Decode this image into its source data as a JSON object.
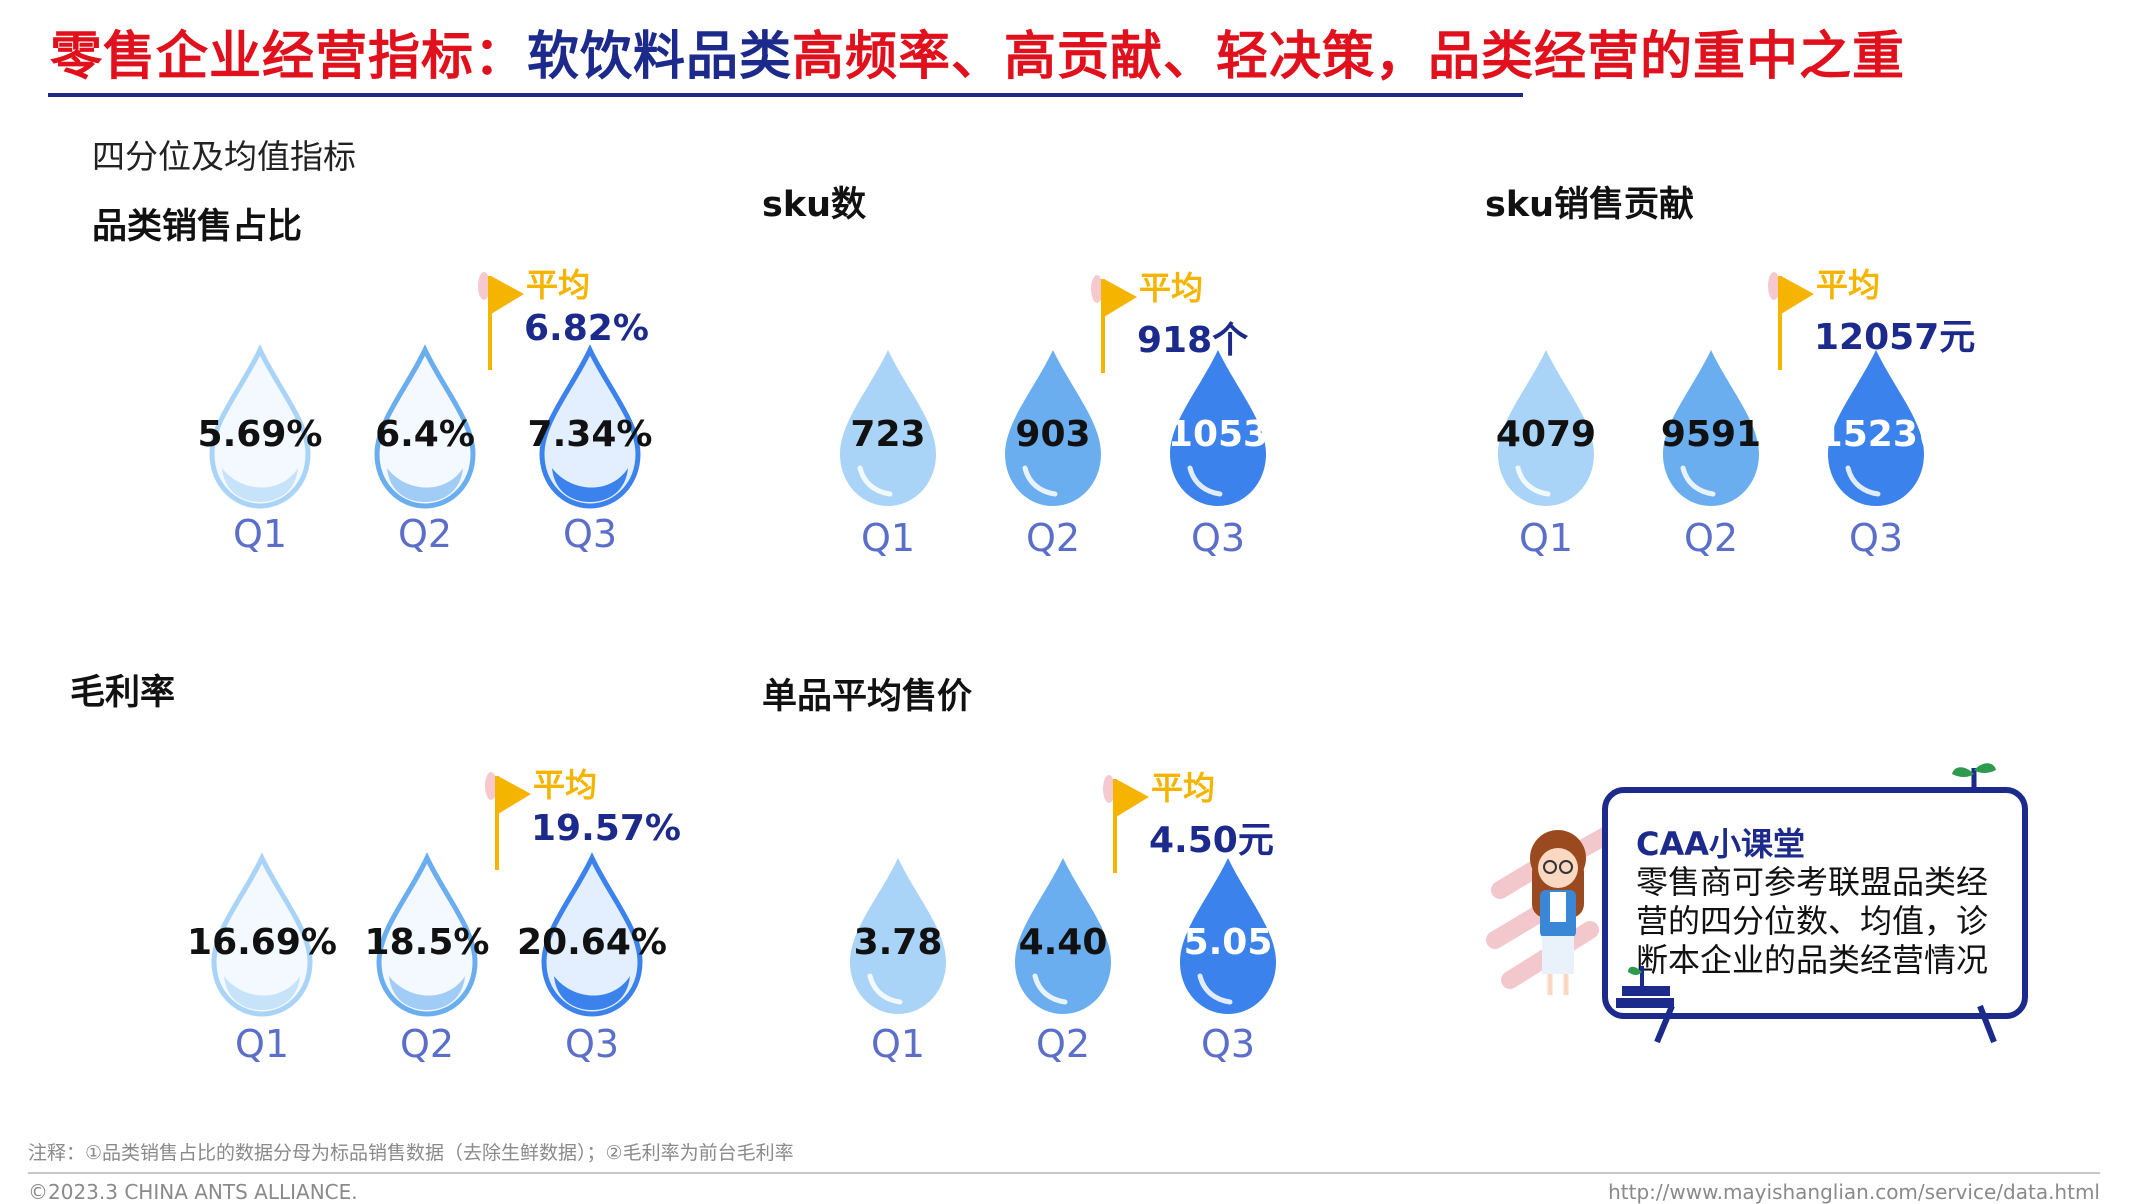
{
  "header": {
    "title_red_1": "零售企业经营指标：",
    "title_blue": "软饮料品类",
    "title_red_2": "高频率、高贡献、轻决策，品类经营的重中之重"
  },
  "subheading": "四分位及均值指标",
  "avg_label": "平均",
  "colors": {
    "title_red": "#e0101c",
    "title_blue": "#1c2a8c",
    "flag_yellow": "#f5b400",
    "quartile_label": "#5b6fc9",
    "drop_light": "#a9d4f7",
    "drop_mid": "#6aaef0",
    "drop_dark": "#3b82ec"
  },
  "chart_data": [
    {
      "type": "table",
      "title": "品类销售占比",
      "categories": [
        "Q1",
        "Q2",
        "Q3"
      ],
      "values": [
        "5.69%",
        "6.4%",
        "7.34%"
      ],
      "average": "6.82%",
      "style": "outline"
    },
    {
      "type": "table",
      "title": "sku数",
      "categories": [
        "Q1",
        "Q2",
        "Q3"
      ],
      "values": [
        "723",
        "903",
        "1053"
      ],
      "average": "918个",
      "style": "filled"
    },
    {
      "type": "table",
      "title": "sku销售贡献",
      "categories": [
        "Q1",
        "Q2",
        "Q3"
      ],
      "values": [
        "4079",
        "9591",
        "1523("
      ],
      "average": "12057元",
      "style": "filled"
    },
    {
      "type": "table",
      "title": "毛利率",
      "categories": [
        "Q1",
        "Q2",
        "Q3"
      ],
      "values": [
        "16.69%",
        "18.5%",
        "20.64%"
      ],
      "average": "19.57%",
      "style": "outline"
    },
    {
      "type": "table",
      "title": "单品平均售价",
      "categories": [
        "Q1",
        "Q2",
        "Q3"
      ],
      "values": [
        "3.78",
        "4.40",
        "5.05"
      ],
      "average": "4.50元",
      "style": "filled"
    }
  ],
  "caa": {
    "title": "CAA小课堂",
    "text": "零售商可参考联盟品类经营的四分位数、均值，诊断本企业的品类经营情况"
  },
  "footer": {
    "note": "注释：①品类销售占比的数据分母为标品销售数据（去除生鲜数据）；②毛利率为前台毛利率",
    "copyright": "©2023.3 CHINA ANTS ALLIANCE.",
    "url": "http://www.mayishanglian.com/service/data.html"
  }
}
